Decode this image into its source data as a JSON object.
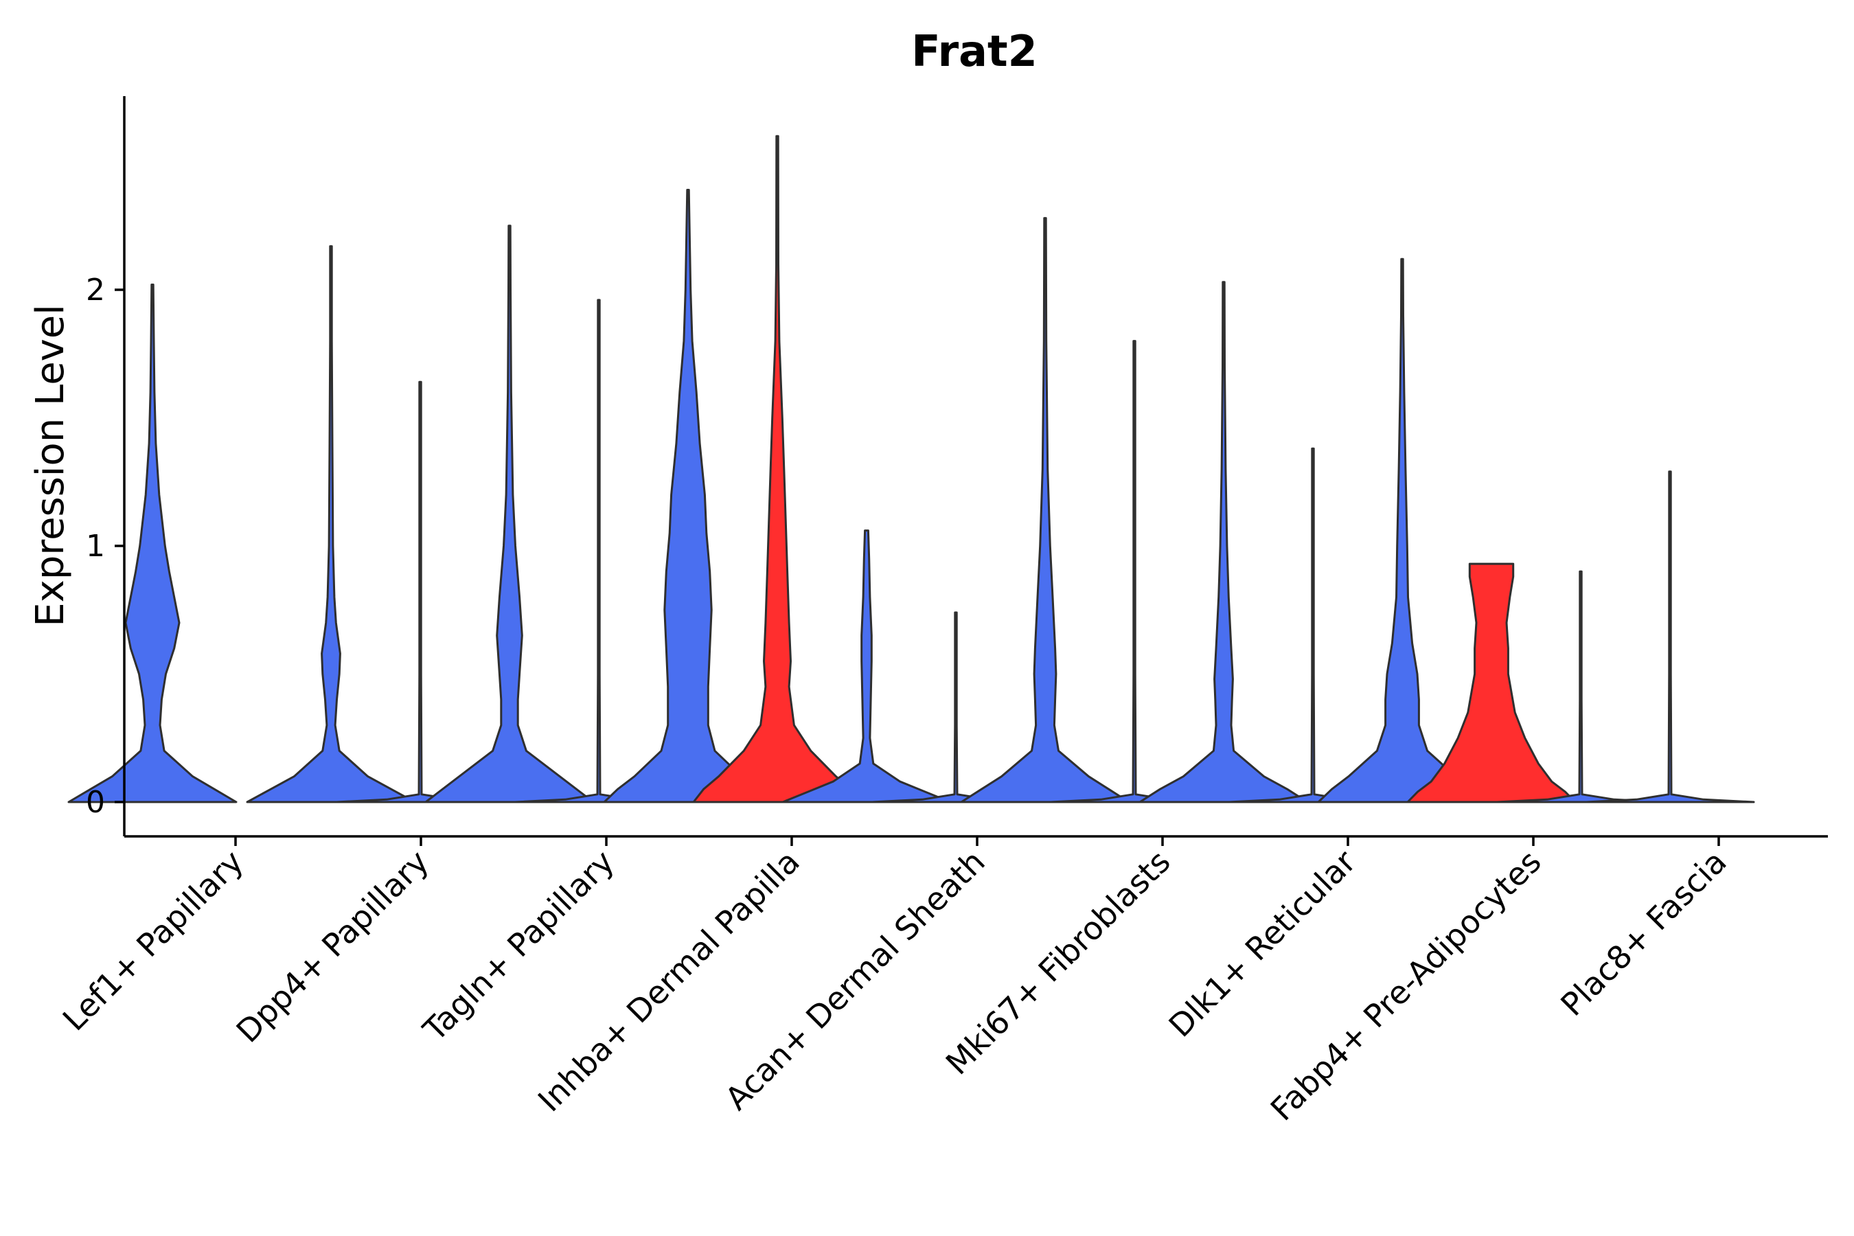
{
  "chart_data": {
    "type": "violin",
    "title": "Frat2",
    "xlabel": "",
    "ylabel": "Expression Level",
    "ylim": [
      -0.13,
      2.75
    ],
    "yticks": [
      0,
      1,
      2
    ],
    "grid": false,
    "legend": "none",
    "colors": {
      "group_a": "#4a6ff0",
      "group_b": "#ff2e2e",
      "outline": "#2f2f2f"
    },
    "categories": [
      "Lef1+ Papillary",
      "Dpp4+ Papillary",
      "Tagln+ Papillary",
      "Inhba+ Dermal Papilla",
      "Acan+ Dermal Sheath",
      "Mki67+ Fibroblasts",
      "Dlk1+ Reticular",
      "Fabp4+ Pre-Adipocytes",
      "Plac8+ Fascia"
    ],
    "groups": [
      {
        "category": "Lef1+ Papillary",
        "violins": [
          {
            "color": "group_a",
            "max": 2.02,
            "profile": [
              [
                0,
                0.5
              ],
              [
                0.05,
                0.37
              ],
              [
                0.1,
                0.24
              ],
              [
                0.2,
                0.07
              ],
              [
                0.3,
                0.045
              ],
              [
                0.4,
                0.055
              ],
              [
                0.5,
                0.08
              ],
              [
                0.6,
                0.13
              ],
              [
                0.7,
                0.16
              ],
              [
                0.8,
                0.13
              ],
              [
                0.9,
                0.1
              ],
              [
                1.0,
                0.075
              ],
              [
                1.2,
                0.04
              ],
              [
                1.4,
                0.02
              ],
              [
                1.6,
                0.012
              ],
              [
                1.8,
                0.008
              ],
              [
                2.02,
                0.004
              ]
            ]
          },
          {
            "color": "group_a",
            "max": 0.0,
            "profile": []
          }
        ]
      },
      {
        "category": "Dpp4+ Papillary",
        "violins": [
          {
            "color": "group_a",
            "max": 2.17,
            "profile": [
              [
                0,
                0.5
              ],
              [
                0.05,
                0.36
              ],
              [
                0.1,
                0.22
              ],
              [
                0.2,
                0.05
              ],
              [
                0.3,
                0.025
              ],
              [
                0.4,
                0.035
              ],
              [
                0.5,
                0.05
              ],
              [
                0.58,
                0.055
              ],
              [
                0.7,
                0.03
              ],
              [
                0.8,
                0.02
              ],
              [
                1.0,
                0.012
              ],
              [
                1.4,
                0.008
              ],
              [
                1.8,
                0.005
              ],
              [
                2.17,
                0.003
              ]
            ]
          },
          {
            "color": "group_a",
            "max": 1.64,
            "profile": [
              [
                0,
                0.5
              ],
              [
                0.01,
                0.2
              ],
              [
                0.03,
                0.008
              ],
              [
                0.5,
                0.004
              ],
              [
                1.0,
                0.003
              ],
              [
                1.64,
                0.003
              ]
            ]
          }
        ]
      },
      {
        "category": "Tagln+ Papillary",
        "violins": [
          {
            "color": "group_a",
            "max": 2.25,
            "profile": [
              [
                0,
                0.5
              ],
              [
                0.05,
                0.4
              ],
              [
                0.1,
                0.3
              ],
              [
                0.2,
                0.1
              ],
              [
                0.3,
                0.05
              ],
              [
                0.4,
                0.05
              ],
              [
                0.5,
                0.06
              ],
              [
                0.65,
                0.075
              ],
              [
                0.8,
                0.06
              ],
              [
                1.0,
                0.035
              ],
              [
                1.2,
                0.02
              ],
              [
                1.6,
                0.01
              ],
              [
                2.0,
                0.006
              ],
              [
                2.25,
                0.003
              ]
            ]
          },
          {
            "color": "group_a",
            "max": 1.96,
            "profile": [
              [
                0,
                0.5
              ],
              [
                0.01,
                0.2
              ],
              [
                0.03,
                0.008
              ],
              [
                0.5,
                0.004
              ],
              [
                1.0,
                0.003
              ],
              [
                1.96,
                0.003
              ]
            ]
          }
        ]
      },
      {
        "category": "Inhba+ Dermal Papilla",
        "violins": [
          {
            "color": "group_a",
            "max": 2.39,
            "profile": [
              [
                0,
                0.5
              ],
              [
                0.05,
                0.42
              ],
              [
                0.1,
                0.32
              ],
              [
                0.2,
                0.16
              ],
              [
                0.3,
                0.12
              ],
              [
                0.45,
                0.12
              ],
              [
                0.6,
                0.13
              ],
              [
                0.75,
                0.14
              ],
              [
                0.9,
                0.13
              ],
              [
                1.05,
                0.11
              ],
              [
                1.2,
                0.1
              ],
              [
                1.4,
                0.07
              ],
              [
                1.6,
                0.05
              ],
              [
                1.8,
                0.025
              ],
              [
                2.0,
                0.015
              ],
              [
                2.39,
                0.003
              ]
            ]
          },
          {
            "color": "group_b",
            "max": 2.6,
            "profile": [
              [
                0,
                0.5
              ],
              [
                0.05,
                0.44
              ],
              [
                0.1,
                0.35
              ],
              [
                0.2,
                0.2
              ],
              [
                0.3,
                0.1
              ],
              [
                0.45,
                0.07
              ],
              [
                0.55,
                0.08
              ],
              [
                0.7,
                0.07
              ],
              [
                0.9,
                0.06
              ],
              [
                1.1,
                0.05
              ],
              [
                1.3,
                0.04
              ],
              [
                1.5,
                0.03
              ],
              [
                1.8,
                0.012
              ],
              [
                2.1,
                0.006
              ],
              [
                2.6,
                0.003
              ]
            ]
          }
        ]
      },
      {
        "category": "Acan+ Dermal Sheath",
        "violins": [
          {
            "color": "group_a",
            "max": 1.06,
            "profile": [
              [
                0,
                0.5
              ],
              [
                0.04,
                0.35
              ],
              [
                0.08,
                0.2
              ],
              [
                0.15,
                0.04
              ],
              [
                0.25,
                0.02
              ],
              [
                0.4,
                0.025
              ],
              [
                0.55,
                0.03
              ],
              [
                0.65,
                0.03
              ],
              [
                0.8,
                0.02
              ],
              [
                0.95,
                0.015
              ],
              [
                1.06,
                0.01
              ]
            ]
          },
          {
            "color": "group_a",
            "max": 0.74,
            "profile": [
              [
                0,
                0.5
              ],
              [
                0.01,
                0.2
              ],
              [
                0.03,
                0.008
              ],
              [
                0.3,
                0.004
              ],
              [
                0.74,
                0.003
              ]
            ]
          }
        ]
      },
      {
        "category": "Mki67+ Fibroblasts",
        "violins": [
          {
            "color": "group_a",
            "max": 2.28,
            "profile": [
              [
                0,
                0.5
              ],
              [
                0.05,
                0.38
              ],
              [
                0.1,
                0.26
              ],
              [
                0.2,
                0.08
              ],
              [
                0.3,
                0.055
              ],
              [
                0.4,
                0.06
              ],
              [
                0.5,
                0.065
              ],
              [
                0.6,
                0.06
              ],
              [
                0.8,
                0.045
              ],
              [
                1.0,
                0.03
              ],
              [
                1.3,
                0.015
              ],
              [
                1.8,
                0.007
              ],
              [
                2.28,
                0.003
              ]
            ]
          },
          {
            "color": "group_a",
            "max": 1.8,
            "profile": [
              [
                0,
                0.5
              ],
              [
                0.01,
                0.2
              ],
              [
                0.03,
                0.008
              ],
              [
                0.5,
                0.004
              ],
              [
                1.0,
                0.003
              ],
              [
                1.8,
                0.003
              ]
            ]
          }
        ]
      },
      {
        "category": "Dlk1+ Reticular",
        "violins": [
          {
            "color": "group_a",
            "max": 2.03,
            "profile": [
              [
                0,
                0.5
              ],
              [
                0.05,
                0.38
              ],
              [
                0.1,
                0.24
              ],
              [
                0.2,
                0.06
              ],
              [
                0.3,
                0.045
              ],
              [
                0.4,
                0.05
              ],
              [
                0.48,
                0.055
              ],
              [
                0.6,
                0.045
              ],
              [
                0.8,
                0.03
              ],
              [
                1.0,
                0.02
              ],
              [
                1.3,
                0.012
              ],
              [
                1.7,
                0.006
              ],
              [
                2.03,
                0.003
              ]
            ]
          },
          {
            "color": "group_a",
            "max": 1.38,
            "profile": [
              [
                0,
                0.5
              ],
              [
                0.01,
                0.2
              ],
              [
                0.03,
                0.008
              ],
              [
                0.5,
                0.004
              ],
              [
                1.0,
                0.003
              ],
              [
                1.38,
                0.003
              ]
            ]
          }
        ]
      },
      {
        "category": "Fabp4+ Pre-Adipocytes",
        "violins": [
          {
            "color": "group_a",
            "max": 2.12,
            "profile": [
              [
                0,
                0.5
              ],
              [
                0.05,
                0.42
              ],
              [
                0.1,
                0.32
              ],
              [
                0.2,
                0.15
              ],
              [
                0.3,
                0.1
              ],
              [
                0.4,
                0.1
              ],
              [
                0.5,
                0.09
              ],
              [
                0.62,
                0.06
              ],
              [
                0.8,
                0.035
              ],
              [
                1.0,
                0.03
              ],
              [
                1.3,
                0.02
              ],
              [
                1.6,
                0.012
              ],
              [
                1.9,
                0.006
              ],
              [
                2.12,
                0.003
              ]
            ]
          },
          {
            "color": "group_b",
            "max": 0.93,
            "profile": [
              [
                0,
                0.5
              ],
              [
                0.04,
                0.44
              ],
              [
                0.08,
                0.36
              ],
              [
                0.15,
                0.28
              ],
              [
                0.25,
                0.2
              ],
              [
                0.35,
                0.14
              ],
              [
                0.5,
                0.1
              ],
              [
                0.6,
                0.1
              ],
              [
                0.7,
                0.09
              ],
              [
                0.8,
                0.11
              ],
              [
                0.88,
                0.13
              ],
              [
                0.93,
                0.13
              ]
            ]
          }
        ]
      },
      {
        "category": "Plac8+ Fascia",
        "violins": [
          {
            "color": "group_a",
            "max": 0.9,
            "profile": [
              [
                0,
                0.5
              ],
              [
                0.01,
                0.2
              ],
              [
                0.03,
                0.008
              ],
              [
                0.4,
                0.004
              ],
              [
                0.9,
                0.003
              ]
            ]
          },
          {
            "color": "group_a",
            "max": 1.29,
            "profile": [
              [
                0,
                0.5
              ],
              [
                0.01,
                0.2
              ],
              [
                0.03,
                0.008
              ],
              [
                0.5,
                0.004
              ],
              [
                1.29,
                0.003
              ]
            ]
          }
        ]
      }
    ]
  }
}
